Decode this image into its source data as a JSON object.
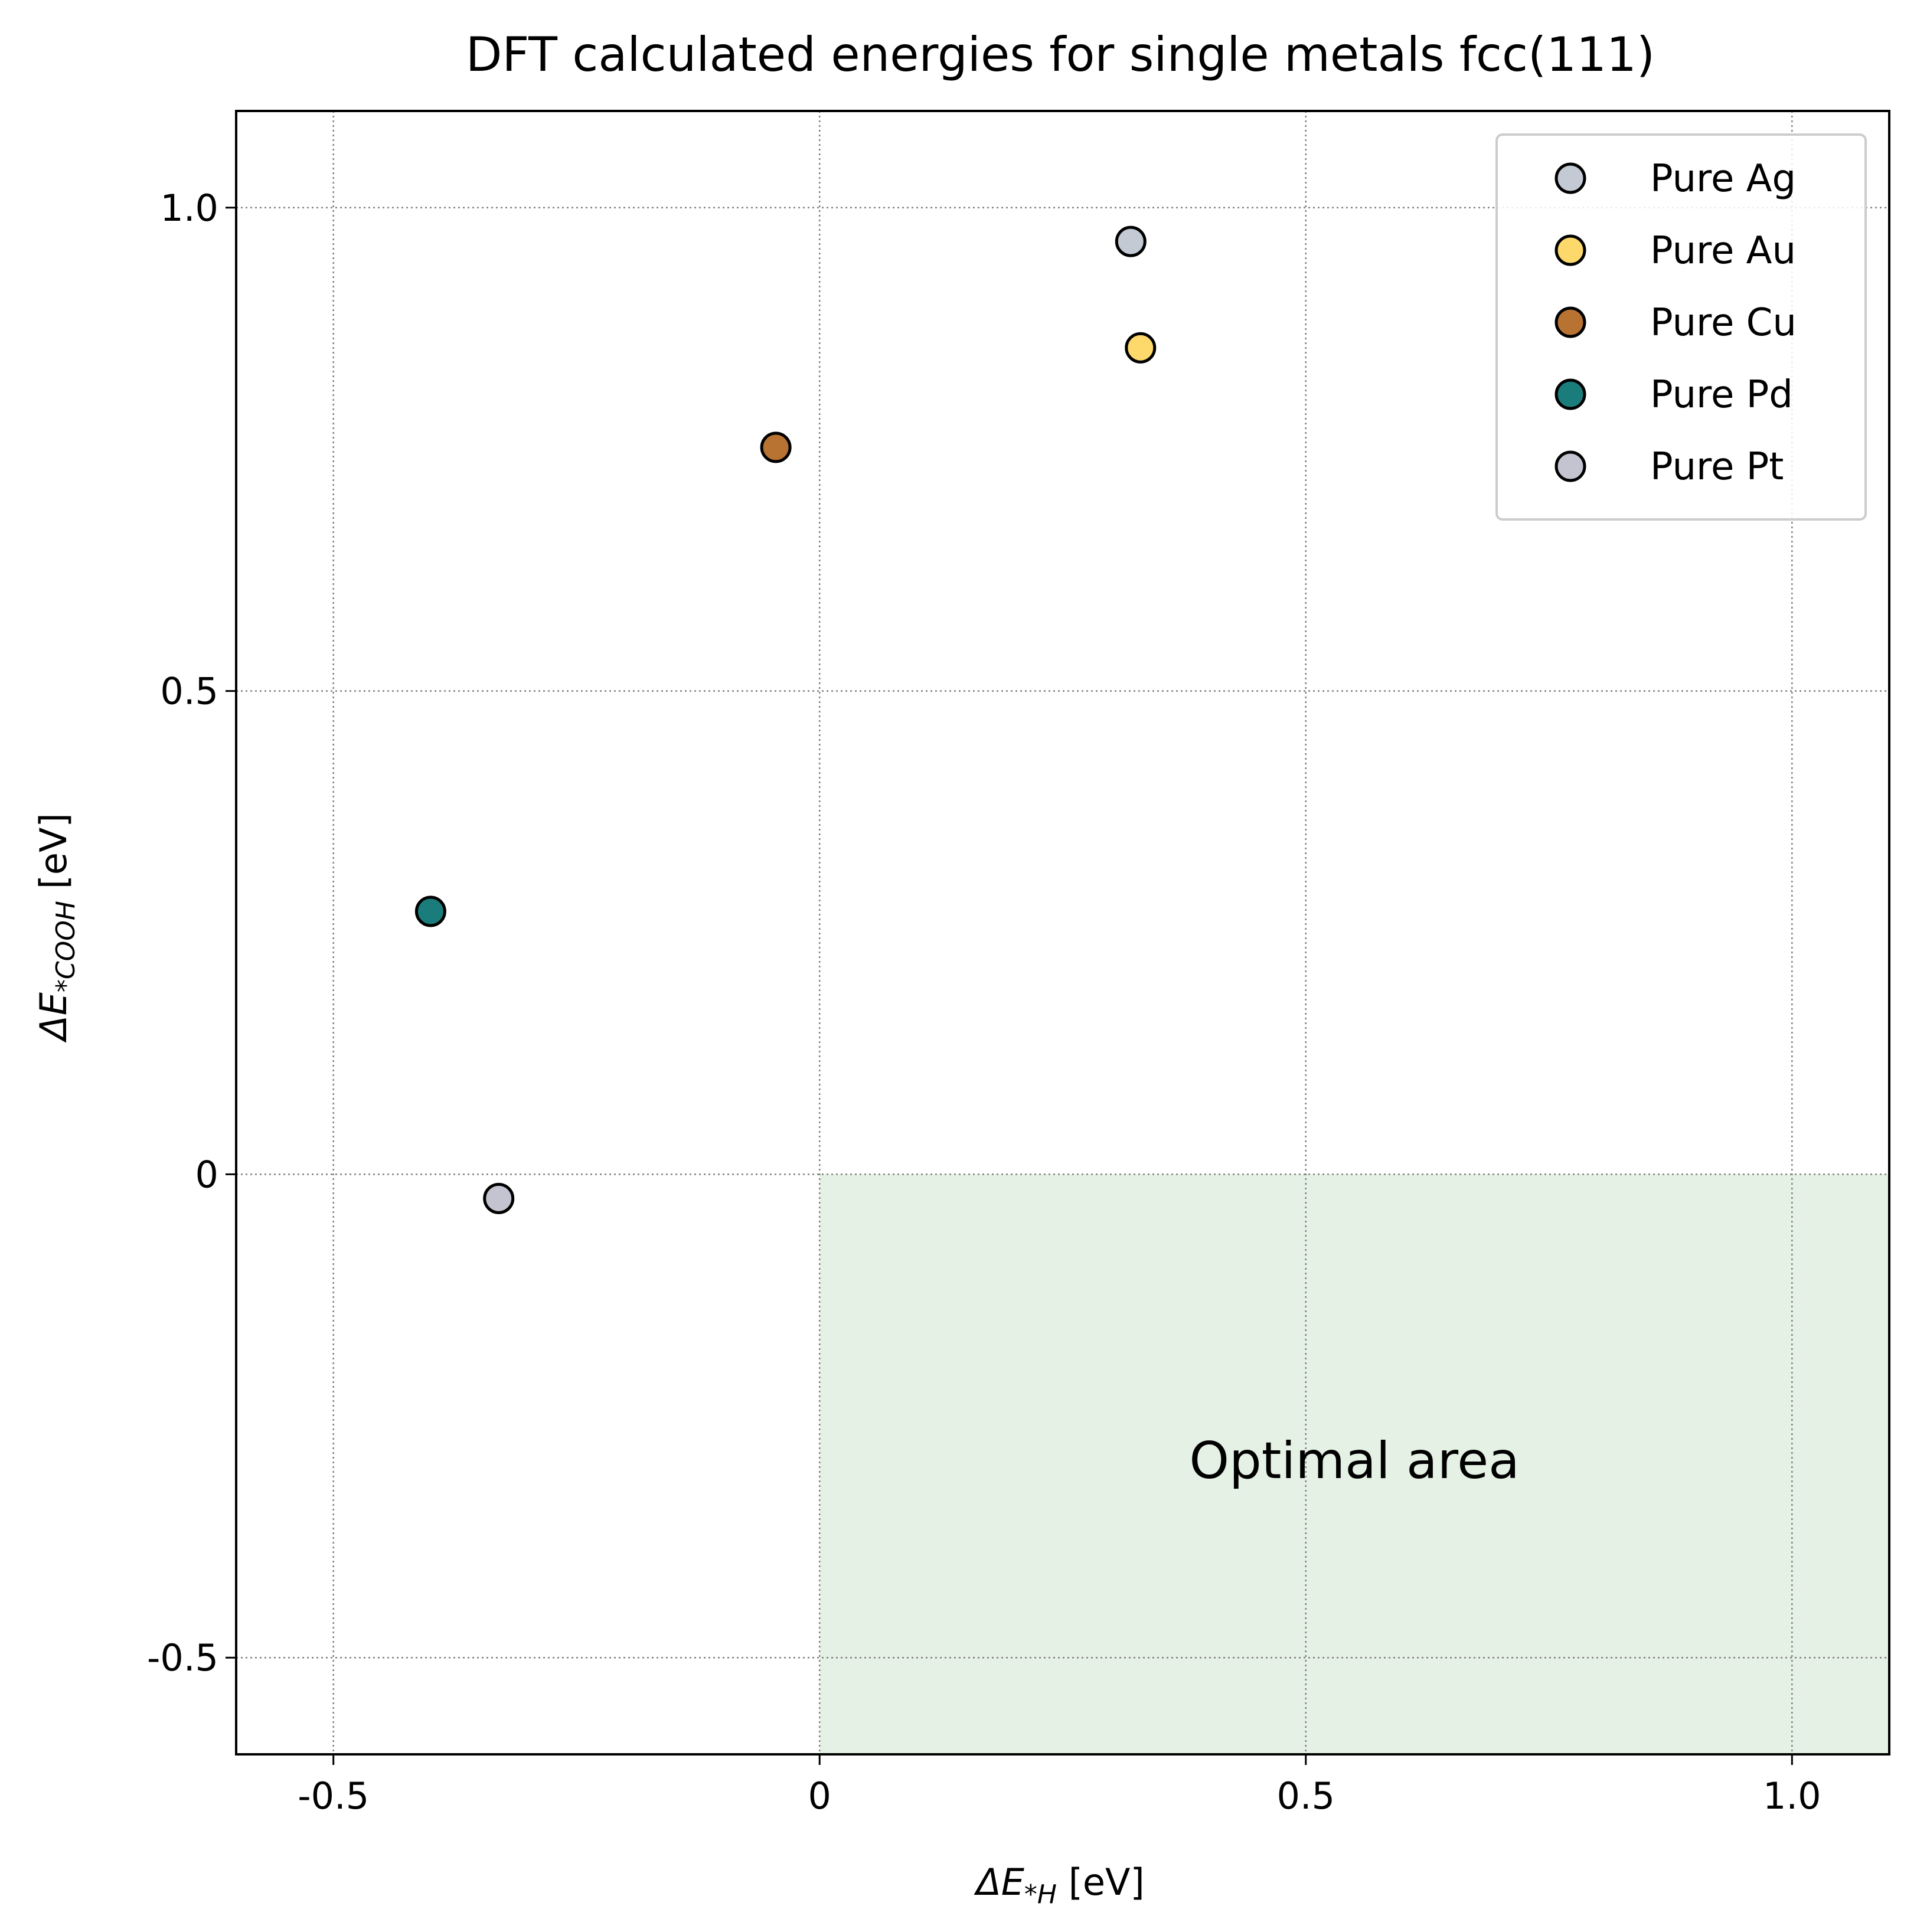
{
  "chart_data": {
    "type": "scatter",
    "title": "DFT calculated energies for single metals fcc(111)",
    "xlabel": {
      "prefix": "ΔE",
      "sub": "*H",
      "suffix": " [eV]"
    },
    "ylabel": {
      "prefix": "ΔE",
      "sub": "*COOH",
      "suffix": " [eV]"
    },
    "xlim": [
      -0.6,
      1.1
    ],
    "ylim": [
      -0.6,
      1.1
    ],
    "xticks": [
      {
        "value": -0.5,
        "label": "-0.5"
      },
      {
        "value": 0,
        "label": "0"
      },
      {
        "value": 0.5,
        "label": "0.5"
      },
      {
        "value": 1.0,
        "label": "1.0"
      }
    ],
    "yticks": [
      {
        "value": -0.5,
        "label": "-0.5"
      },
      {
        "value": 0,
        "label": "0"
      },
      {
        "value": 0.5,
        "label": "0.5"
      },
      {
        "value": 1.0,
        "label": "1.0"
      }
    ],
    "grid": true,
    "legend_position": "top-right",
    "series": [
      {
        "name": "Pure Ag",
        "color": "#c3cad3",
        "x": [
          0.32
        ],
        "y": [
          0.965
        ]
      },
      {
        "name": "Pure Au",
        "color": "#fdd96b",
        "x": [
          0.33
        ],
        "y": [
          0.855
        ]
      },
      {
        "name": "Pure Cu",
        "color": "#b87333",
        "x": [
          -0.045
        ],
        "y": [
          0.752
        ]
      },
      {
        "name": "Pure Pd",
        "color": "#1b7d7b",
        "x": [
          -0.4
        ],
        "y": [
          0.272
        ]
      },
      {
        "name": "Pure Pt",
        "color": "#c4c4d0",
        "x": [
          -0.33
        ],
        "y": [
          -0.025
        ]
      }
    ],
    "shaded_region": {
      "label": "Optimal area",
      "x_range": [
        0,
        1.1
      ],
      "y_range": [
        -0.6,
        0
      ],
      "color": "#e6f1e5"
    }
  }
}
